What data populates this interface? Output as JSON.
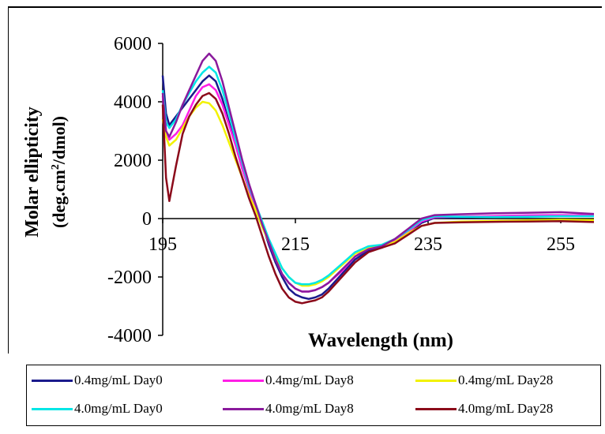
{
  "chart_data": {
    "type": "line",
    "title": "",
    "xlabel": "Wavelength (nm)",
    "ylabel_line1": "Molar ellipticity",
    "ylabel_line2_prefix": "(deg.cm",
    "ylabel_line2_sup": "2",
    "ylabel_line2_suffix": "/dmol)",
    "xlim": [
      195,
      260
    ],
    "ylim": [
      -4000,
      6000
    ],
    "xticks": [
      195,
      215,
      235,
      255
    ],
    "xtick_labels": [
      "195",
      "215",
      "235",
      "255"
    ],
    "yticks": [
      6000,
      4000,
      2000,
      0,
      -2000,
      -4000
    ],
    "ytick_labels": [
      "6000",
      "4000",
      "2000",
      "0",
      "-2000",
      "-4000"
    ],
    "legend_position": "bottom",
    "series": [
      {
        "name": "0.4mg/mL Day0",
        "color": "#1a1a8c",
        "x": [
          195,
          195.5,
          196,
          197,
          198,
          199,
          200,
          201,
          202,
          203,
          204,
          205,
          206,
          207,
          208,
          209,
          210,
          211,
          212,
          213,
          214,
          215,
          216,
          217,
          218,
          219,
          220,
          222,
          224,
          226,
          228,
          230,
          232,
          234,
          236,
          240,
          245,
          250,
          255,
          260
        ],
        "y": [
          4900,
          3600,
          3200,
          3500,
          3800,
          4100,
          4400,
          4700,
          4900,
          4700,
          4100,
          3300,
          2500,
          1700,
          1000,
          400,
          -200,
          -900,
          -1500,
          -2000,
          -2400,
          -2600,
          -2700,
          -2750,
          -2700,
          -2600,
          -2400,
          -1900,
          -1400,
          -1100,
          -1000,
          -800,
          -500,
          -150,
          30,
          40,
          60,
          80,
          100,
          100
        ]
      },
      {
        "name": "0.4mg/mL Day8",
        "color": "#ff1ee6",
        "x": [
          195,
          195.5,
          196,
          197,
          198,
          199,
          200,
          201,
          202,
          203,
          204,
          205,
          206,
          207,
          208,
          209,
          210,
          211,
          212,
          213,
          214,
          215,
          216,
          217,
          218,
          219,
          220,
          222,
          224,
          226,
          228,
          230,
          232,
          234,
          236,
          240,
          245,
          250,
          255,
          260
        ],
        "y": [
          4200,
          3000,
          2700,
          2900,
          3200,
          3700,
          4200,
          4500,
          4600,
          4400,
          3900,
          3200,
          2500,
          1700,
          1000,
          400,
          -200,
          -800,
          -1400,
          -1900,
          -2200,
          -2400,
          -2500,
          -2500,
          -2450,
          -2350,
          -2200,
          -1800,
          -1300,
          -1000,
          -950,
          -750,
          -450,
          -100,
          50,
          70,
          90,
          110,
          120,
          110
        ]
      },
      {
        "name": "0.4mg/mL Day28",
        "color": "#f2f200",
        "x": [
          195,
          195.5,
          196,
          197,
          198,
          199,
          200,
          201,
          202,
          203,
          204,
          205,
          206,
          207,
          208,
          209,
          210,
          211,
          212,
          213,
          214,
          215,
          216,
          217,
          218,
          219,
          220,
          222,
          224,
          226,
          228,
          230,
          232,
          234,
          236,
          240,
          245,
          250,
          255,
          260
        ],
        "y": [
          3400,
          2800,
          2500,
          2700,
          3100,
          3500,
          3800,
          4000,
          3950,
          3700,
          3200,
          2600,
          2000,
          1400,
          800,
          300,
          -300,
          -800,
          -1300,
          -1700,
          -2000,
          -2200,
          -2300,
          -2300,
          -2250,
          -2150,
          -2000,
          -1600,
          -1200,
          -1000,
          -950,
          -800,
          -500,
          -250,
          -150,
          -100,
          -80,
          -60,
          -40,
          -50
        ]
      },
      {
        "name": "4.0mg/mL Day0",
        "color": "#00e6e6",
        "x": [
          195,
          195.5,
          196,
          197,
          198,
          199,
          200,
          201,
          202,
          203,
          204,
          205,
          206,
          207,
          208,
          209,
          210,
          211,
          212,
          213,
          214,
          215,
          216,
          217,
          218,
          219,
          220,
          222,
          224,
          226,
          228,
          230,
          232,
          234,
          236,
          240,
          245,
          250,
          255,
          260
        ],
        "y": [
          4400,
          3300,
          3100,
          3400,
          3900,
          4300,
          4700,
          5000,
          5200,
          5000,
          4400,
          3600,
          2700,
          1900,
          1100,
          500,
          -100,
          -700,
          -1200,
          -1700,
          -2000,
          -2200,
          -2250,
          -2250,
          -2200,
          -2100,
          -1950,
          -1550,
          -1150,
          -950,
          -900,
          -700,
          -400,
          -50,
          80,
          60,
          50,
          60,
          80,
          80
        ]
      },
      {
        "name": "4.0mg/mL Day8",
        "color": "#8a1a9c",
        "x": [
          195,
          195.5,
          196,
          197,
          198,
          199,
          200,
          201,
          202,
          203,
          204,
          205,
          206,
          207,
          208,
          209,
          210,
          211,
          212,
          213,
          214,
          215,
          216,
          217,
          218,
          219,
          220,
          222,
          224,
          226,
          228,
          230,
          232,
          234,
          236,
          240,
          245,
          250,
          255,
          260
        ],
        "y": [
          4300,
          3000,
          2800,
          3300,
          3900,
          4400,
          4900,
          5400,
          5650,
          5400,
          4700,
          3800,
          2900,
          2000,
          1200,
          500,
          -200,
          -800,
          -1400,
          -1900,
          -2200,
          -2400,
          -2500,
          -2500,
          -2450,
          -2350,
          -2200,
          -1750,
          -1300,
          -1050,
          -950,
          -700,
          -350,
          0,
          120,
          150,
          180,
          200,
          220,
          160
        ]
      },
      {
        "name": "4.0mg/mL Day28",
        "color": "#8b0a1a",
        "x": [
          195,
          195.5,
          196,
          197,
          198,
          199,
          200,
          201,
          202,
          203,
          204,
          205,
          206,
          207,
          208,
          209,
          210,
          211,
          212,
          213,
          214,
          215,
          216,
          217,
          218,
          219,
          220,
          222,
          224,
          226,
          228,
          230,
          232,
          234,
          236,
          240,
          245,
          250,
          255,
          260
        ],
        "y": [
          3900,
          1400,
          600,
          1800,
          2900,
          3500,
          3900,
          4200,
          4300,
          4100,
          3600,
          2900,
          2100,
          1400,
          700,
          100,
          -600,
          -1300,
          -1900,
          -2400,
          -2700,
          -2850,
          -2900,
          -2850,
          -2800,
          -2700,
          -2500,
          -2000,
          -1500,
          -1150,
          -1000,
          -850,
          -550,
          -250,
          -150,
          -130,
          -110,
          -100,
          -90,
          -120
        ]
      }
    ]
  }
}
